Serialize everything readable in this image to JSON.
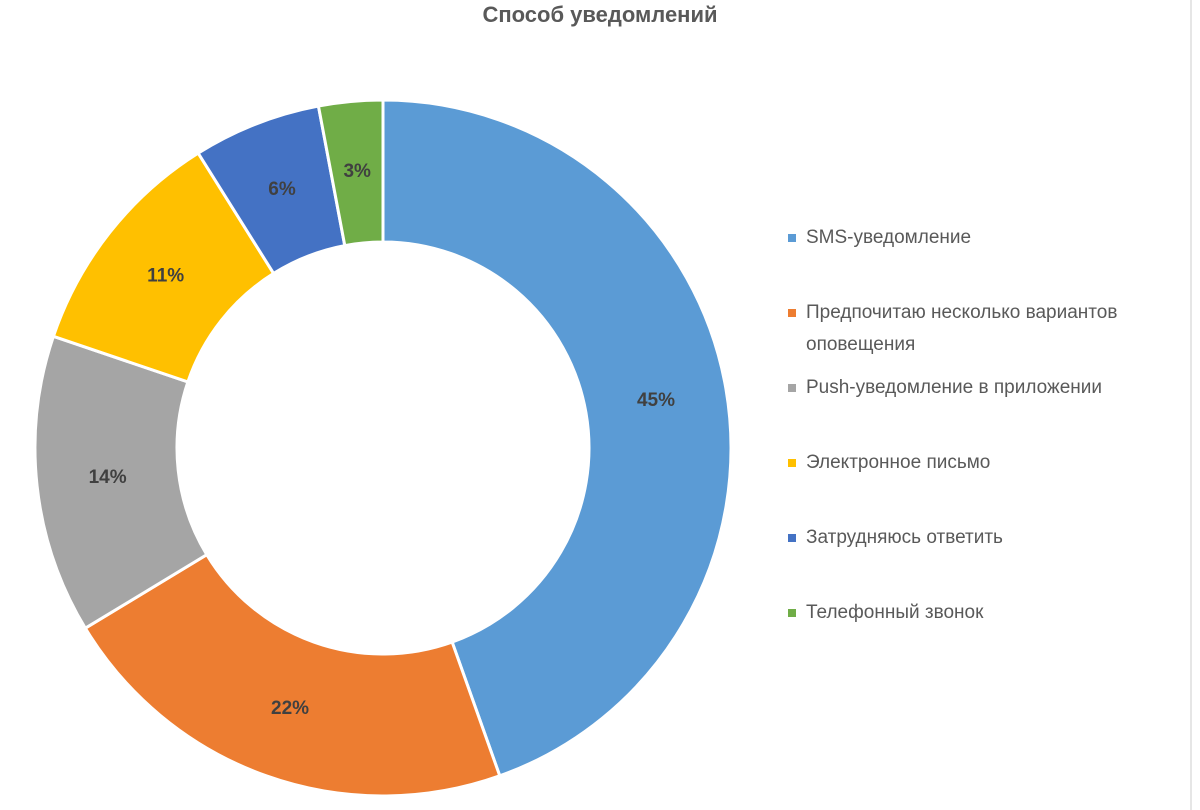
{
  "chart_data": {
    "type": "pie",
    "variant": "donut",
    "title": "Способ уведомлений",
    "legend_position": "right",
    "categories": [
      "SMS-уведомление",
      "Предпочитаю несколько вариантов оповещения",
      "Push-уведомление в приложении",
      "Электронное письмо",
      "Затрудняюсь ответить",
      "Телефонный звонок"
    ],
    "values": [
      45,
      22,
      14,
      11,
      6,
      3
    ],
    "labels": [
      "45%",
      "22%",
      "14%",
      "11%",
      "6%",
      "3%"
    ],
    "colors": [
      "#5b9bd5",
      "#ed7d31",
      "#a5a5a5",
      "#ffc000",
      "#4472c4",
      "#70ad47"
    ]
  }
}
